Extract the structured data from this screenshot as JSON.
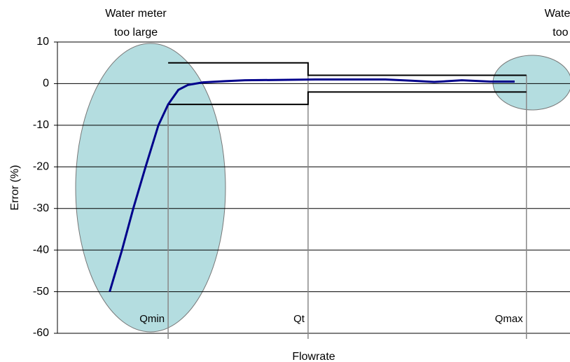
{
  "chart_data": {
    "type": "line",
    "y_label": "Error (%)",
    "x_label": "Flowrate",
    "annotations": [
      {
        "lines": [
          "Water meter",
          "too large"
        ],
        "x": 15.3
      },
      {
        "lines": [
          "Water meter",
          "too small"
        ],
        "x": 101
      }
    ],
    "ylim": [
      -60,
      10
    ],
    "yticks": [
      10,
      0,
      -10,
      -20,
      -30,
      -40,
      -50,
      -60
    ],
    "xlim": [
      0,
      100
    ],
    "grid": true,
    "series": [
      {
        "color": "#00008b",
        "x": [
          10.2,
          12.6,
          14.8,
          17.2,
          19.7,
          21.6,
          23.6,
          25.5,
          28.4,
          32.8,
          36.6,
          43.7,
          50.3,
          57.4,
          64,
          69.1,
          73.5,
          78.9,
          84.4,
          89.2
        ],
        "values": [
          -50,
          -40,
          -30,
          -20,
          -10,
          -5,
          -1.5,
          -0.3,
          0.3,
          0.6,
          0.8,
          0.9,
          1,
          1,
          1,
          0.7,
          0.4,
          0.8,
          0.5,
          0.5
        ]
      }
    ],
    "upper_limit": {
      "x": [
        21.6,
        48.9,
        48.9,
        91.5
      ],
      "values": [
        5,
        5,
        2,
        2
      ]
    },
    "lower_limit": {
      "x": [
        21.6,
        48.9,
        48.9,
        91.5
      ],
      "values": [
        -5,
        -5,
        -2,
        -2
      ]
    },
    "markers": [
      {
        "label": "Qmin",
        "x": 21.6,
        "top": -5
      },
      {
        "label": "Qt",
        "x": 48.9,
        "top": 5
      },
      {
        "label": "Qmax",
        "x": 91.5,
        "top": 2
      }
    ]
  }
}
